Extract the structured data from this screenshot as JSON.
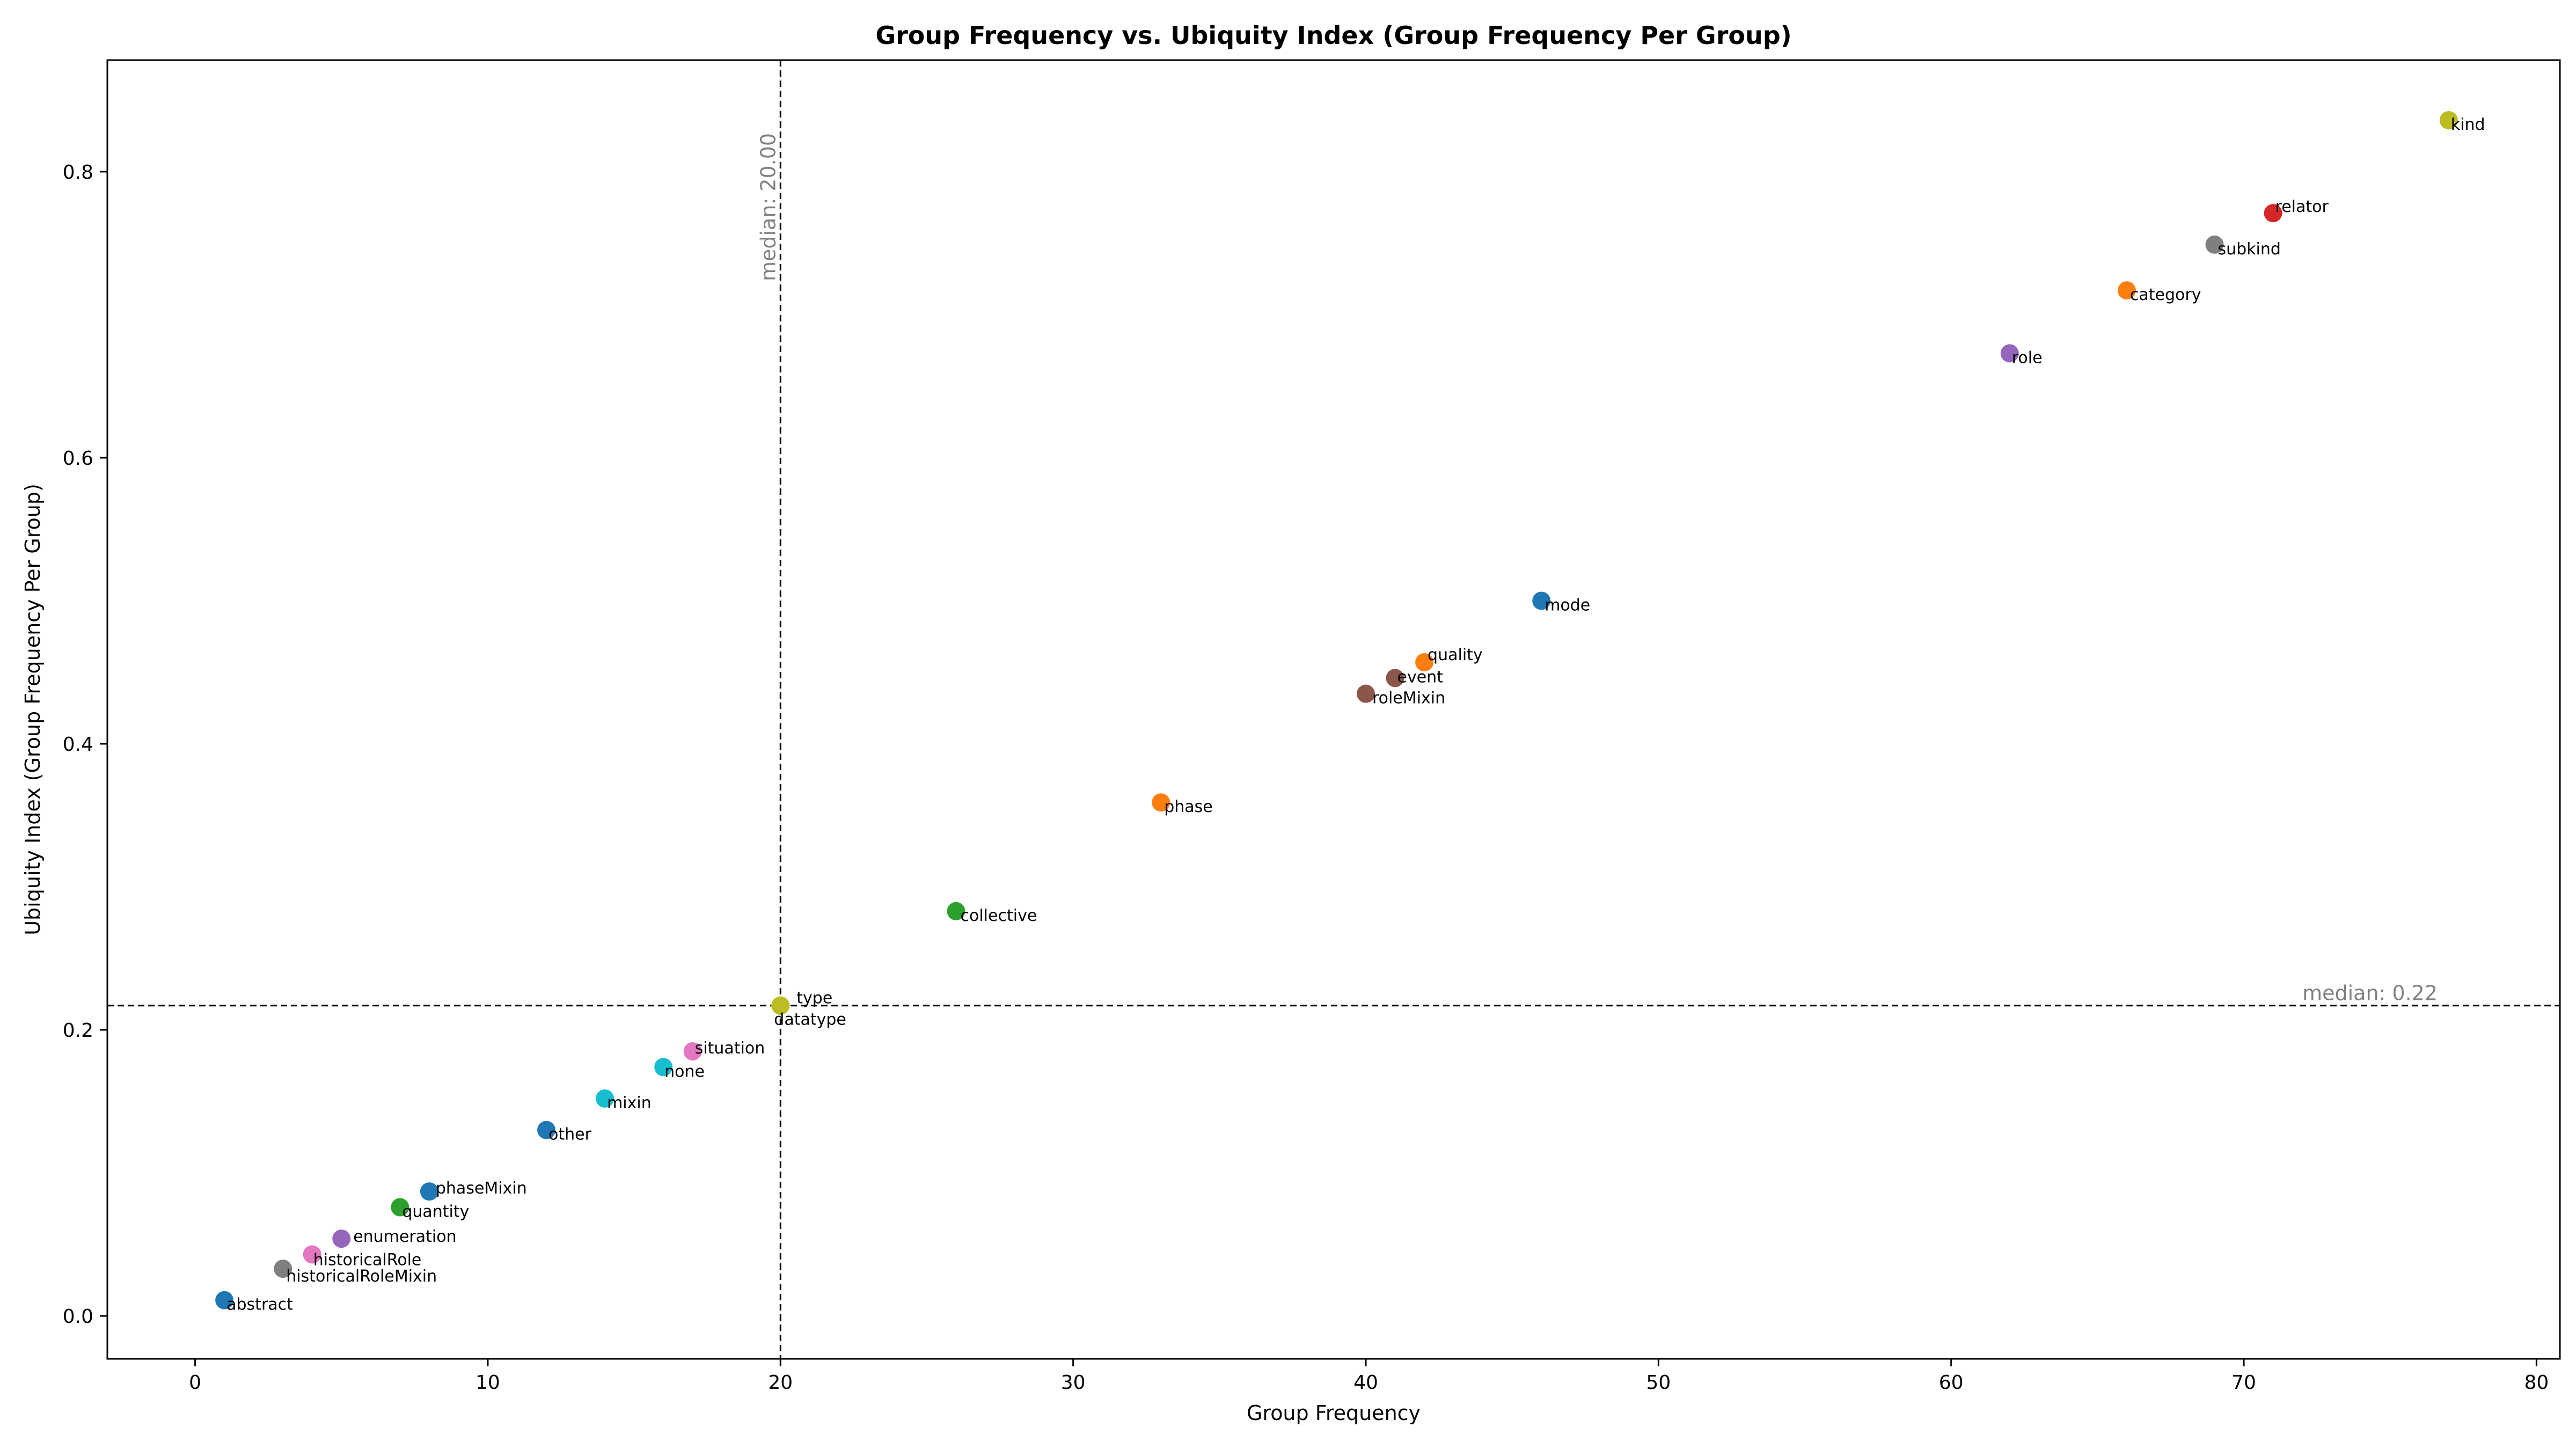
{
  "chart_data": {
    "type": "scatter",
    "title": "Group Frequency vs. Ubiquity Index (Group Frequency Per Group)",
    "xlabel": "Group Frequency",
    "ylabel": "Ubiquity Index (Group Frequency Per Group)",
    "xlim": [
      -3,
      80.8
    ],
    "ylim": [
      -0.03,
      0.878
    ],
    "xticks": [
      0,
      10,
      20,
      30,
      40,
      50,
      60,
      70,
      80
    ],
    "yticks": [
      0.0,
      0.2,
      0.4,
      0.6,
      0.8
    ],
    "grid": false,
    "medians": {
      "x": {
        "value": 20,
        "label": "median: 20.00"
      },
      "y": {
        "value": 0.217,
        "label": "median: 0.22"
      }
    },
    "points": [
      {
        "label": "kind",
        "x": 77,
        "y": 0.836,
        "color": "#bcbd22"
      },
      {
        "label": "relator",
        "x": 71,
        "y": 0.771,
        "color": "#d62728"
      },
      {
        "label": "subkind",
        "x": 69,
        "y": 0.749,
        "color": "#7f7f7f"
      },
      {
        "label": "category",
        "x": 66,
        "y": 0.717,
        "color": "#ff7f0e"
      },
      {
        "label": "role",
        "x": 62,
        "y": 0.673,
        "color": "#9467bd"
      },
      {
        "label": "mode",
        "x": 46,
        "y": 0.5,
        "color": "#1f77b4"
      },
      {
        "label": "quality",
        "x": 42,
        "y": 0.457,
        "color": "#ff7f0e"
      },
      {
        "label": "event",
        "x": 41,
        "y": 0.446,
        "color": "#8c564b"
      },
      {
        "label": "roleMixin",
        "x": 40,
        "y": 0.435,
        "color": "#8c564b"
      },
      {
        "label": "phase",
        "x": 33,
        "y": 0.359,
        "color": "#ff7f0e"
      },
      {
        "label": "collective",
        "x": 26,
        "y": 0.283,
        "color": "#2ca02c"
      },
      {
        "label": "type",
        "x": 20,
        "y": 0.217,
        "color": "#bcbd22"
      },
      {
        "label": "datatype",
        "x": 20,
        "y": 0.217,
        "color": "#bcbd22"
      },
      {
        "label": "situation",
        "x": 17,
        "y": 0.185,
        "color": "#e377c2"
      },
      {
        "label": "none",
        "x": 16,
        "y": 0.174,
        "color": "#17becf"
      },
      {
        "label": "mixin",
        "x": 14,
        "y": 0.152,
        "color": "#17becf"
      },
      {
        "label": "other",
        "x": 12,
        "y": 0.13,
        "color": "#1f77b4"
      },
      {
        "label": "phaseMixin",
        "x": 8,
        "y": 0.087,
        "color": "#1f77b4"
      },
      {
        "label": "quantity",
        "x": 7,
        "y": 0.076,
        "color": "#2ca02c"
      },
      {
        "label": "enumeration",
        "x": 5,
        "y": 0.054,
        "color": "#9467bd"
      },
      {
        "label": "historicalRole",
        "x": 4,
        "y": 0.043,
        "color": "#e377c2"
      },
      {
        "label": "historicalRoleMixin",
        "x": 3,
        "y": 0.033,
        "color": "#7f7f7f"
      },
      {
        "label": "abstract",
        "x": 1,
        "y": 0.011,
        "color": "#1f77b4"
      }
    ]
  }
}
